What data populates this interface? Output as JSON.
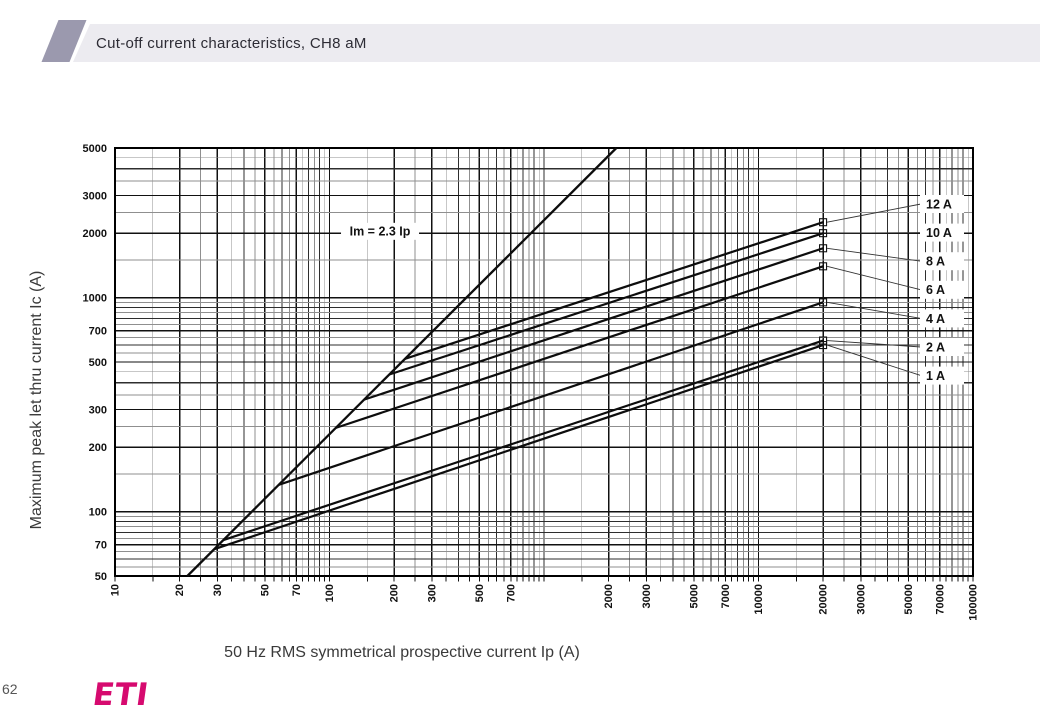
{
  "header": {
    "title": "Cut-off current characteristics, CH8 aM"
  },
  "footer": {
    "page_number": "62",
    "logo_text": "ETI"
  },
  "colors": {
    "header_parallelogram": "#9b99ae",
    "header_bar": "#ecebf0",
    "logo_magenta": "#d60a6f",
    "grid_major": "#2e2e2e",
    "grid_minor": "#8f8f8f",
    "curve_black": "#0d0d0d"
  },
  "chart_data": {
    "type": "line",
    "title": "",
    "xlabel": "50 Hz RMS symmetrical prospective current Ip (A)",
    "ylabel": "Maximum peak let thru current Ic (A)",
    "x_scale": "log",
    "y_scale": "log",
    "xlim": [
      10,
      100000
    ],
    "ylim": [
      50,
      5000
    ],
    "grid": true,
    "x_ticks": [
      "10",
      "20",
      "30",
      "50",
      "70",
      "100",
      "200",
      "300",
      "500",
      "700",
      "2000",
      "3000",
      "5000",
      "7000",
      "10000",
      "20000",
      "30000",
      "50000",
      "70000",
      "100000"
    ],
    "y_ticks": [
      "5000",
      "3000",
      "2000",
      "1000",
      "700",
      "500",
      "300",
      "200",
      "100",
      "70",
      "50"
    ],
    "diagonal": {
      "label": "Im = 2.3 Ip",
      "factor": 2.3
    },
    "annotation": {
      "text": "Im = 2.3 Ip",
      "at_ip": 172,
      "at_ic": 2040
    },
    "marker": "square",
    "marker_ip": 20000,
    "series": [
      {
        "name": "12 A",
        "branch_ip": 225,
        "end_ip": 20000,
        "end_ic": 2250
      },
      {
        "name": "10 A",
        "branch_ip": 190,
        "end_ip": 20000,
        "end_ic": 2000
      },
      {
        "name": "8 A",
        "branch_ip": 145,
        "end_ip": 20000,
        "end_ic": 1700
      },
      {
        "name": "6 A",
        "branch_ip": 107,
        "end_ip": 20000,
        "end_ic": 1400
      },
      {
        "name": "4 A",
        "branch_ip": 58,
        "end_ip": 20000,
        "end_ic": 950
      },
      {
        "name": "2 A",
        "branch_ip": 32,
        "end_ip": 20000,
        "end_ic": 630
      },
      {
        "name": "1 A",
        "branch_ip": 29,
        "end_ip": 20000,
        "end_ic": 600
      }
    ],
    "legend_position": "right-callout-labels"
  }
}
